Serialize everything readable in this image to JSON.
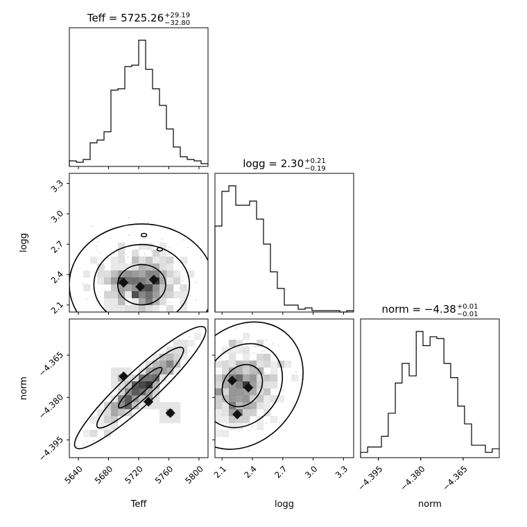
{
  "chart_data": {
    "type": "corner",
    "parameters": [
      "Teff",
      "logg",
      "norm"
    ],
    "titles": [
      {
        "param": "Teff",
        "prefix": "Teff = 5725.26",
        "plus": "+29.19",
        "minus": "−32.80"
      },
      {
        "param": "logg",
        "prefix": "logg = 2.30",
        "plus": "+0.21",
        "minus": "−0.19"
      },
      {
        "param": "norm",
        "prefix": "norm = −4.38",
        "plus": "+0.01",
        "minus": "−0.01"
      }
    ],
    "axis_labels": {
      "Teff": "Teff",
      "logg": "logg",
      "norm": "norm"
    },
    "ranges": {
      "Teff": [
        5628,
        5812
      ],
      "logg": [
        2.03,
        3.4
      ],
      "norm": [
        -4.4013,
        -4.3522
      ]
    },
    "ticks": {
      "Teff": {
        "values": [
          5640,
          5680,
          5720,
          5760,
          5800
        ],
        "labels": [
          "5640",
          "5680",
          "5720",
          "5760",
          "5800"
        ]
      },
      "logg": {
        "values": [
          2.1,
          2.4,
          2.7,
          3.0,
          3.3
        ],
        "labels": [
          "2.1",
          "2.4",
          "2.7",
          "3.0",
          "3.3"
        ]
      },
      "norm": {
        "values": [
          -4.395,
          -4.38,
          -4.365
        ],
        "labels": [
          "−4.395",
          "−4.380",
          "−4.365"
        ]
      }
    },
    "histograms": {
      "Teff": {
        "bin_edges": [
          5628,
          5637.2,
          5646.4,
          5655.6,
          5664.8,
          5674,
          5683.2,
          5692.4,
          5701.6,
          5710.8,
          5720,
          5729.2,
          5738.4,
          5747.6,
          5756.8,
          5766,
          5775.2,
          5784.4,
          5793.6,
          5802.8,
          5812
        ],
        "counts": [
          4,
          3,
          5,
          17,
          19,
          25,
          55,
          56,
          72,
          73,
          91,
          70,
          56,
          44,
          27,
          14,
          7,
          5,
          4,
          2
        ]
      },
      "logg": {
        "bin_edges": [
          2.03,
          2.0985,
          2.167,
          2.2355,
          2.304,
          2.3725,
          2.441,
          2.5095,
          2.578,
          2.6465,
          2.715,
          2.7835,
          2.852,
          2.9205,
          2.989,
          3.0575,
          3.126,
          3.1945,
          3.263,
          3.3315,
          3.4
        ],
        "counts": [
          62,
          87,
          91,
          77,
          77,
          80,
          67,
          49,
          29,
          17,
          5,
          5,
          2,
          3,
          1,
          1,
          1,
          1,
          0,
          1
        ]
      },
      "norm": {
        "bin_edges": [
          -4.4013,
          -4.3988,
          -4.3964,
          -4.3939,
          -4.3915,
          -4.389,
          -4.3866,
          -4.3841,
          -4.3816,
          -4.3792,
          -4.3767,
          -4.3743,
          -4.3718,
          -4.3694,
          -4.3669,
          -4.3645,
          -4.362,
          -4.3596,
          -4.3571,
          -4.3547,
          -4.3522
        ],
        "counts": [
          3,
          6,
          6,
          12,
          25,
          42,
          53,
          46,
          71,
          63,
          68,
          67,
          53,
          45,
          29,
          19,
          7,
          7,
          3,
          5
        ]
      }
    },
    "scatter_2d": [
      {
        "x": "Teff",
        "y": "logg",
        "center": [
          5724,
          2.3
        ],
        "sigma": [
          32,
          0.2
        ],
        "corr": 0.0,
        "peaks": [
          [
            5700,
            2.32
          ],
          [
            5722,
            2.28
          ],
          [
            5740,
            2.35
          ]
        ],
        "contour_outliers": [
          [
            5727,
            2.79
          ],
          [
            5748,
            2.65
          ]
        ]
      },
      {
        "x": "Teff",
        "y": "norm",
        "center": [
          5722,
          -4.3765
        ],
        "sigma": [
          29,
          0.0072
        ],
        "corr": 0.93,
        "peaks": [
          [
            5700,
            -4.3725
          ],
          [
            5733,
            -4.3815
          ],
          [
            5762,
            -4.3855
          ]
        ],
        "contour_outliers": []
      },
      {
        "x": "logg",
        "y": "norm",
        "center": [
          2.3,
          -4.3758
        ],
        "sigma": [
          0.2,
          0.0075
        ],
        "corr": 0.2,
        "peaks": [
          [
            2.2,
            -4.374
          ],
          [
            2.36,
            -4.3765
          ],
          [
            2.25,
            -4.386
          ]
        ],
        "contour_outliers": []
      }
    ],
    "contour_fills": [
      "#ffffff",
      "#d4d4d4",
      "#a8a8a8",
      "#777777",
      "#3a3a3a"
    ]
  }
}
